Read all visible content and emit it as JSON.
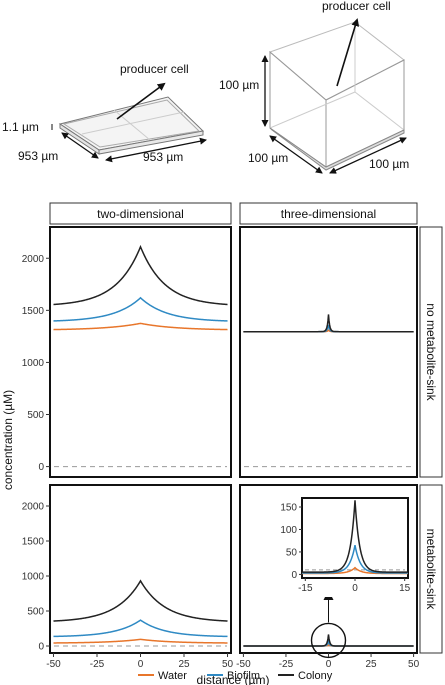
{
  "diagrams": {
    "two_d": {
      "producer_label": "producer cell",
      "thickness_label": "1.1 µm",
      "width_label": "953 µm",
      "depth_label": "953 µm"
    },
    "three_d": {
      "producer_label": "producer cell",
      "height_label": "100 µm",
      "width_label": "100 µm",
      "depth_label": "100 µm"
    }
  },
  "panels": {
    "col_headers": [
      "two-dimensional",
      "three-dimensional"
    ],
    "row_headers": [
      "no metabolite-sink",
      "metabolite-sink"
    ],
    "y_axis_label": "concentration (µM)",
    "x_axis_label": "distance (µm)"
  },
  "colors": {
    "Water": "#e8762b",
    "Biofilm": "#2f8ac4",
    "Colony": "#222222",
    "reference_line": "#999999"
  },
  "chart_data": {
    "type": "line",
    "xlabel": "distance (µm)",
    "ylabel": "concentration (µM)",
    "xlim": [
      -52,
      52
    ],
    "ylim": [
      -100,
      2300
    ],
    "x_ticks": [
      -50,
      -25,
      0,
      25,
      50
    ],
    "y_ticks": [
      0,
      500,
      1000,
      1500,
      2000
    ],
    "legend": {
      "position": "bottom",
      "entries": [
        "Water",
        "Biofilm",
        "Colony"
      ]
    },
    "reference_line": {
      "y": 0,
      "style": "dashed"
    },
    "panels": [
      {
        "column": "two-dimensional",
        "row": "no metabolite-sink",
        "series": [
          {
            "name": "Water",
            "baseline": 1310,
            "peak": 1375,
            "decay": 20
          },
          {
            "name": "Biofilm",
            "baseline": 1390,
            "peak": 1620,
            "decay": 15
          },
          {
            "name": "Colony",
            "baseline": 1540,
            "peak": 2110,
            "decay": 14
          }
        ]
      },
      {
        "column": "three-dimensional",
        "row": "no metabolite-sink",
        "series": [
          {
            "name": "Water",
            "baseline": 1295,
            "peak": 1310,
            "decay": 0.7
          },
          {
            "name": "Biofilm",
            "baseline": 1295,
            "peak": 1360,
            "decay": 0.7
          },
          {
            "name": "Colony",
            "baseline": 1295,
            "peak": 1460,
            "decay": 0.7
          }
        ]
      },
      {
        "column": "two-dimensional",
        "row": "metabolite-sink",
        "series": [
          {
            "name": "Water",
            "baseline": 40,
            "peak": 95,
            "decay": 18
          },
          {
            "name": "Biofilm",
            "baseline": 130,
            "peak": 370,
            "decay": 14
          },
          {
            "name": "Colony",
            "baseline": 340,
            "peak": 930,
            "decay": 14
          }
        ]
      },
      {
        "column": "three-dimensional",
        "row": "metabolite-sink",
        "series": [
          {
            "name": "Water",
            "baseline": 0,
            "peak": 15,
            "decay": 0.7
          },
          {
            "name": "Biofilm",
            "baseline": 0,
            "peak": 65,
            "decay": 0.7
          },
          {
            "name": "Colony",
            "baseline": 0,
            "peak": 165,
            "decay": 0.7
          }
        ],
        "inset": {
          "xlim": [
            -16,
            16
          ],
          "ylim": [
            -8,
            170
          ],
          "x_ticks": [
            -15,
            0,
            15
          ],
          "y_ticks": [
            0,
            50,
            100,
            150
          ],
          "series": [
            {
              "name": "Water",
              "baseline": 2,
              "peak": 15,
              "decay": 1.8
            },
            {
              "name": "Biofilm",
              "baseline": 3,
              "peak": 65,
              "decay": 1.6
            },
            {
              "name": "Colony",
              "baseline": 5,
              "peak": 165,
              "decay": 1.4
            }
          ]
        }
      }
    ]
  }
}
